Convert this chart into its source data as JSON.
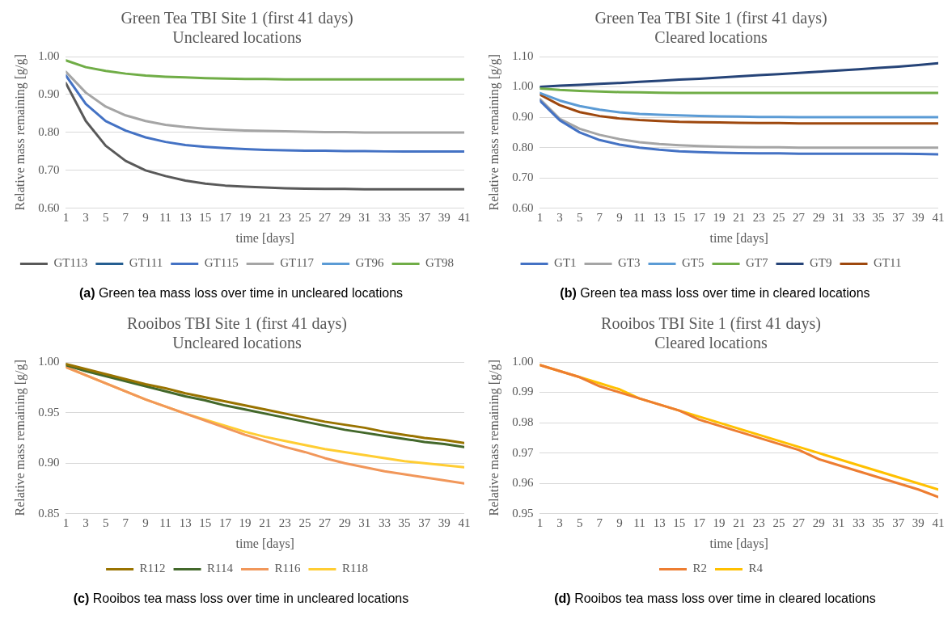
{
  "chart_data": [
    {
      "type": "line",
      "title": "Green Tea TBI Site 1 (first 41 days)",
      "subtitle": "Uncleared locations",
      "xlabel": "time [days]",
      "ylabel": "Relative mass remaining [g/g]",
      "x": [
        1,
        3,
        5,
        7,
        9,
        11,
        13,
        15,
        17,
        19,
        21,
        23,
        25,
        27,
        29,
        31,
        33,
        35,
        37,
        39,
        41
      ],
      "xlim": [
        1,
        41
      ],
      "xticks": [
        1,
        3,
        5,
        7,
        9,
        11,
        13,
        15,
        17,
        19,
        21,
        23,
        25,
        27,
        29,
        31,
        33,
        35,
        37,
        39,
        41
      ],
      "ylim": [
        0.6,
        1.0
      ],
      "yticks": [
        {
          "value": 0.6,
          "label": "0.60"
        },
        {
          "value": 0.7,
          "label": "0.70"
        },
        {
          "value": 0.8,
          "label": "0.80"
        },
        {
          "value": 0.9,
          "label": "0.90"
        },
        {
          "value": 1.0,
          "label": "1.00"
        }
      ],
      "grid": "y",
      "legend": "bottom",
      "marker": "none",
      "annotations": [
        "(a) Green tea mass loss over time in uncleared locations"
      ],
      "series": [
        {
          "name": "GT113",
          "color": "#595959",
          "values": [
            0.93,
            0.83,
            0.765,
            0.725,
            0.7,
            0.685,
            0.673,
            0.665,
            0.66,
            0.657,
            0.655,
            0.653,
            0.652,
            0.651,
            0.651,
            0.65,
            0.65,
            0.65,
            0.65,
            0.65,
            0.65
          ]
        },
        {
          "name": "GT111",
          "color": "#255e91",
          "values": [
            null,
            null,
            null,
            null,
            null,
            null,
            null,
            null,
            null,
            null,
            null,
            null,
            null,
            null,
            null,
            null,
            null,
            null,
            null,
            null,
            null
          ]
        },
        {
          "name": "GT115",
          "color": "#4472c4",
          "values": [
            0.95,
            0.875,
            0.83,
            0.805,
            0.787,
            0.775,
            0.767,
            0.762,
            0.759,
            0.756,
            0.754,
            0.753,
            0.752,
            0.752,
            0.751,
            0.751,
            0.75,
            0.75,
            0.75,
            0.75,
            0.75
          ]
        },
        {
          "name": "GT117",
          "color": "#a5a5a5",
          "values": [
            0.96,
            0.905,
            0.868,
            0.845,
            0.83,
            0.82,
            0.814,
            0.81,
            0.807,
            0.805,
            0.804,
            0.803,
            0.802,
            0.801,
            0.801,
            0.8,
            0.8,
            0.8,
            0.8,
            0.8,
            0.8
          ]
        },
        {
          "name": "GT96",
          "color": "#5b9bd5",
          "values": [
            null,
            null,
            null,
            null,
            null,
            null,
            null,
            null,
            null,
            null,
            null,
            null,
            null,
            null,
            null,
            null,
            null,
            null,
            null,
            null,
            null
          ]
        },
        {
          "name": "GT98",
          "color": "#70ad47",
          "values": [
            0.99,
            0.972,
            0.962,
            0.955,
            0.95,
            0.947,
            0.945,
            0.943,
            0.942,
            0.941,
            0.941,
            0.94,
            0.94,
            0.94,
            0.94,
            0.94,
            0.94,
            0.94,
            0.94,
            0.94,
            0.94
          ]
        }
      ]
    },
    {
      "type": "line",
      "title": "Green Tea TBI Site 1 (first 41 days)",
      "subtitle": "Cleared locations",
      "xlabel": "time [days]",
      "ylabel": "Relative mass remaining [g/g]",
      "x": [
        1,
        3,
        5,
        7,
        9,
        11,
        13,
        15,
        17,
        19,
        21,
        23,
        25,
        27,
        29,
        31,
        33,
        35,
        37,
        39,
        41
      ],
      "xlim": [
        1,
        41
      ],
      "xticks": [
        1,
        3,
        5,
        7,
        9,
        11,
        13,
        15,
        17,
        19,
        21,
        23,
        25,
        27,
        29,
        31,
        33,
        35,
        37,
        39,
        41
      ],
      "ylim": [
        0.6,
        1.1
      ],
      "yticks": [
        {
          "value": 0.6,
          "label": "0.60"
        },
        {
          "value": 0.7,
          "label": "0.70"
        },
        {
          "value": 0.8,
          "label": "0.80"
        },
        {
          "value": 0.9,
          "label": "0.90"
        },
        {
          "value": 1.0,
          "label": "1.00"
        },
        {
          "value": 1.1,
          "label": "1.10"
        }
      ],
      "grid": "y",
      "legend": "bottom",
      "marker": "none",
      "annotations": [
        "(b) Green tea mass loss over time in cleared locations"
      ],
      "series": [
        {
          "name": "GT1",
          "color": "#4472c4",
          "values": [
            0.955,
            0.89,
            0.85,
            0.825,
            0.81,
            0.8,
            0.793,
            0.788,
            0.785,
            0.783,
            0.782,
            0.781,
            0.781,
            0.78,
            0.78,
            0.78,
            0.78,
            0.78,
            0.78,
            0.779,
            0.778
          ]
        },
        {
          "name": "GT3",
          "color": "#a5a5a5",
          "values": [
            0.96,
            0.895,
            0.862,
            0.842,
            0.828,
            0.818,
            0.812,
            0.808,
            0.805,
            0.803,
            0.802,
            0.801,
            0.801,
            0.8,
            0.8,
            0.8,
            0.8,
            0.8,
            0.8,
            0.8,
            0.8
          ]
        },
        {
          "name": "GT5",
          "color": "#5b9bd5",
          "values": [
            0.98,
            0.955,
            0.937,
            0.925,
            0.916,
            0.911,
            0.908,
            0.906,
            0.904,
            0.903,
            0.902,
            0.901,
            0.901,
            0.9,
            0.9,
            0.9,
            0.9,
            0.9,
            0.9,
            0.9,
            0.9
          ]
        },
        {
          "name": "GT7",
          "color": "#70ad47",
          "values": [
            0.995,
            0.99,
            0.987,
            0.985,
            0.983,
            0.982,
            0.981,
            0.98,
            0.98,
            0.98,
            0.98,
            0.98,
            0.98,
            0.98,
            0.98,
            0.98,
            0.98,
            0.98,
            0.98,
            0.98,
            0.98
          ]
        },
        {
          "name": "GT9",
          "color": "#264478",
          "values": [
            1.0,
            1.004,
            1.007,
            1.01,
            1.013,
            1.017,
            1.02,
            1.024,
            1.027,
            1.031,
            1.035,
            1.039,
            1.042,
            1.046,
            1.05,
            1.054,
            1.058,
            1.063,
            1.067,
            1.072,
            1.078
          ]
        },
        {
          "name": "GT11",
          "color": "#9e480e",
          "values": [
            0.975,
            0.94,
            0.917,
            0.904,
            0.896,
            0.891,
            0.888,
            0.885,
            0.884,
            0.883,
            0.882,
            0.881,
            0.881,
            0.88,
            0.88,
            0.88,
            0.88,
            0.88,
            0.88,
            0.88,
            0.88
          ]
        }
      ]
    },
    {
      "type": "line",
      "title": "Rooibos TBI Site 1 (first 41 days)",
      "subtitle": "Uncleared locations",
      "xlabel": "time [days]",
      "ylabel": "Relative mass remaining [g/g]",
      "x": [
        1,
        3,
        5,
        7,
        9,
        11,
        13,
        15,
        17,
        19,
        21,
        23,
        25,
        27,
        29,
        31,
        33,
        35,
        37,
        39,
        41
      ],
      "xlim": [
        1,
        41
      ],
      "xticks": [
        1,
        3,
        5,
        7,
        9,
        11,
        13,
        15,
        17,
        19,
        21,
        23,
        25,
        27,
        29,
        31,
        33,
        35,
        37,
        39,
        41
      ],
      "ylim": [
        0.85,
        1.0
      ],
      "yticks": [
        {
          "value": 0.85,
          "label": "0.85"
        },
        {
          "value": 0.9,
          "label": "0.90"
        },
        {
          "value": 0.95,
          "label": "0.95"
        },
        {
          "value": 1.0,
          "label": "1.00"
        }
      ],
      "grid": "y",
      "legend": "bottom",
      "marker": "none",
      "annotations": [
        "(c) Rooibos tea mass loss over time in uncleared locations"
      ],
      "series": [
        {
          "name": "R112",
          "color": "#997300",
          "values": [
            0.998,
            0.993,
            0.988,
            0.983,
            0.978,
            0.974,
            0.969,
            0.965,
            0.961,
            0.957,
            0.953,
            0.949,
            0.945,
            0.941,
            0.938,
            0.935,
            0.931,
            0.928,
            0.925,
            0.923,
            0.92
          ]
        },
        {
          "name": "R114",
          "color": "#43682b",
          "values": [
            0.997,
            0.991,
            0.986,
            0.981,
            0.976,
            0.971,
            0.966,
            0.962,
            0.957,
            0.953,
            0.949,
            0.945,
            0.941,
            0.937,
            0.933,
            0.93,
            0.927,
            0.924,
            0.921,
            0.919,
            0.916
          ]
        },
        {
          "name": "R116",
          "color": "#f1975a",
          "values": [
            0.995,
            0.987,
            0.979,
            0.971,
            0.963,
            0.956,
            0.949,
            0.942,
            0.935,
            0.928,
            0.922,
            0.916,
            0.911,
            0.905,
            0.9,
            0.896,
            0.892,
            0.889,
            0.886,
            0.883,
            0.88
          ]
        },
        {
          "name": "R118",
          "color": "#ffcd33",
          "values": [
            0.995,
            0.987,
            0.979,
            0.971,
            0.963,
            0.956,
            0.949,
            0.943,
            0.937,
            0.931,
            0.926,
            0.922,
            0.918,
            0.914,
            0.911,
            0.908,
            0.905,
            0.902,
            0.9,
            0.898,
            0.896
          ]
        }
      ]
    },
    {
      "type": "line",
      "title": "Rooibos TBI Site 1 (first 41 days)",
      "subtitle": "Cleared locations",
      "xlabel": "time [days]",
      "ylabel": "Relative mass remaining [g/g]",
      "x": [
        1,
        3,
        5,
        7,
        9,
        11,
        13,
        15,
        17,
        19,
        21,
        23,
        25,
        27,
        29,
        31,
        33,
        35,
        37,
        39,
        41
      ],
      "xlim": [
        1,
        41
      ],
      "xticks": [
        1,
        3,
        5,
        7,
        9,
        11,
        13,
        15,
        17,
        19,
        21,
        23,
        25,
        27,
        29,
        31,
        33,
        35,
        37,
        39,
        41
      ],
      "ylim": [
        0.95,
        1.0
      ],
      "yticks": [
        {
          "value": 0.95,
          "label": "0.95"
        },
        {
          "value": 0.96,
          "label": "0.96"
        },
        {
          "value": 0.97,
          "label": "0.97"
        },
        {
          "value": 0.98,
          "label": "0.98"
        },
        {
          "value": 0.99,
          "label": "0.99"
        },
        {
          "value": 1.0,
          "label": "1.00"
        }
      ],
      "grid": "y",
      "legend": "bottom",
      "marker": "none",
      "annotations": [
        "(d) Rooibos tea mass loss over time in cleared locations"
      ],
      "series": [
        {
          "name": "R2",
          "color": "#ed7d31",
          "values": [
            0.999,
            0.997,
            0.995,
            0.992,
            0.99,
            0.988,
            0.986,
            0.984,
            0.981,
            0.979,
            0.977,
            0.975,
            0.973,
            0.971,
            0.968,
            0.966,
            0.964,
            0.962,
            0.96,
            0.958,
            0.9555
          ]
        },
        {
          "name": "R4",
          "color": "#ffc000",
          "values": [
            0.999,
            0.997,
            0.995,
            0.993,
            0.991,
            0.988,
            0.986,
            0.984,
            0.982,
            0.98,
            0.978,
            0.976,
            0.974,
            0.972,
            0.97,
            0.968,
            0.966,
            0.964,
            0.962,
            0.96,
            0.958
          ]
        }
      ]
    }
  ]
}
